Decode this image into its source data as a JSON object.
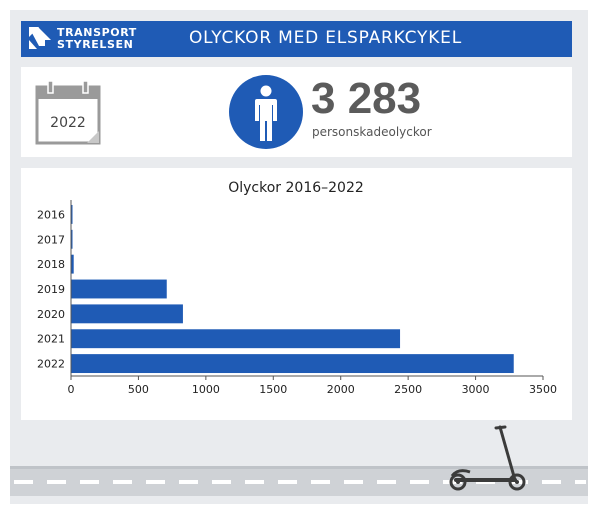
{
  "header": {
    "logo_line1": "TRANSPORT",
    "logo_line2": "STYRELSEN",
    "title": "OLYCKOR MED ELSPARKCYKEL"
  },
  "summary": {
    "calendar_year": "2022",
    "person_icon": "person-icon",
    "count": "3 283",
    "count_label": "personskadeolyckor"
  },
  "colors": {
    "brand_blue": "#1f5bb5",
    "panel_gray": "#e9ebee",
    "bar_blue": "#1f5bb5"
  },
  "chart_data": {
    "type": "bar",
    "orientation": "horizontal",
    "title": "Olyckor 2016–2022",
    "categories": [
      "2016",
      "2017",
      "2018",
      "2019",
      "2020",
      "2021",
      "2022"
    ],
    "values": [
      8,
      5,
      20,
      710,
      830,
      2440,
      3283
    ],
    "xlim": [
      0,
      3500
    ],
    "xticks": [
      "0",
      "500",
      "1000",
      "1500",
      "2000",
      "2500",
      "3000",
      "3500"
    ],
    "xlabel": "",
    "ylabel": "",
    "grid": false,
    "legend": "none"
  },
  "decoration": {
    "scooter_icon": "scooter-icon",
    "road": "road-illustration"
  }
}
